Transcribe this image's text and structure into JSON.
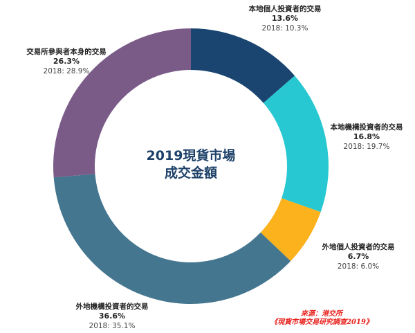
{
  "chart_data": {
    "type": "pie",
    "subtype": "donut",
    "title": "2019現貨市場成交金額",
    "start_angle_deg": 0,
    "direction": "clockwise",
    "categories": [
      "本地個人投資者的交易",
      "本地機構投資者的交易",
      "外地個人投資者的交易",
      "外地機構投資者的交易",
      "交易所參與者本身的交易"
    ],
    "series": [
      {
        "name": "2019",
        "values": [
          13.6,
          16.8,
          6.7,
          36.6,
          26.3
        ]
      },
      {
        "name": "2018",
        "values": [
          10.3,
          19.7,
          6.0,
          35.1,
          28.9
        ]
      }
    ],
    "colors": [
      "#1a4570",
      "#27c8d2",
      "#fbb21d",
      "#45768f",
      "#7a5b88"
    ],
    "unit": "%"
  },
  "center": {
    "line1": "2019現貨市場",
    "line2": "成交金額"
  },
  "labels": [
    {
      "name": "本地個人投資者的交易",
      "pct": "13.6%",
      "prev": "2018: 10.3%"
    },
    {
      "name": "本地機構投資者的交易",
      "pct": "16.8%",
      "prev": "2018: 19.7%"
    },
    {
      "name": "外地個人投資者的交易",
      "pct": "6.7%",
      "prev": "2018: 6.0%"
    },
    {
      "name": "外地機構投資者的交易",
      "pct": "36.6%",
      "prev": "2018: 35.1%"
    },
    {
      "name": "交易所參與者本身的交易",
      "pct": "26.3%",
      "prev": "2018: 28.9%"
    }
  ],
  "source": {
    "line1": "來源：港交所",
    "line2": "《現貨市場交易研究調查2019》"
  }
}
